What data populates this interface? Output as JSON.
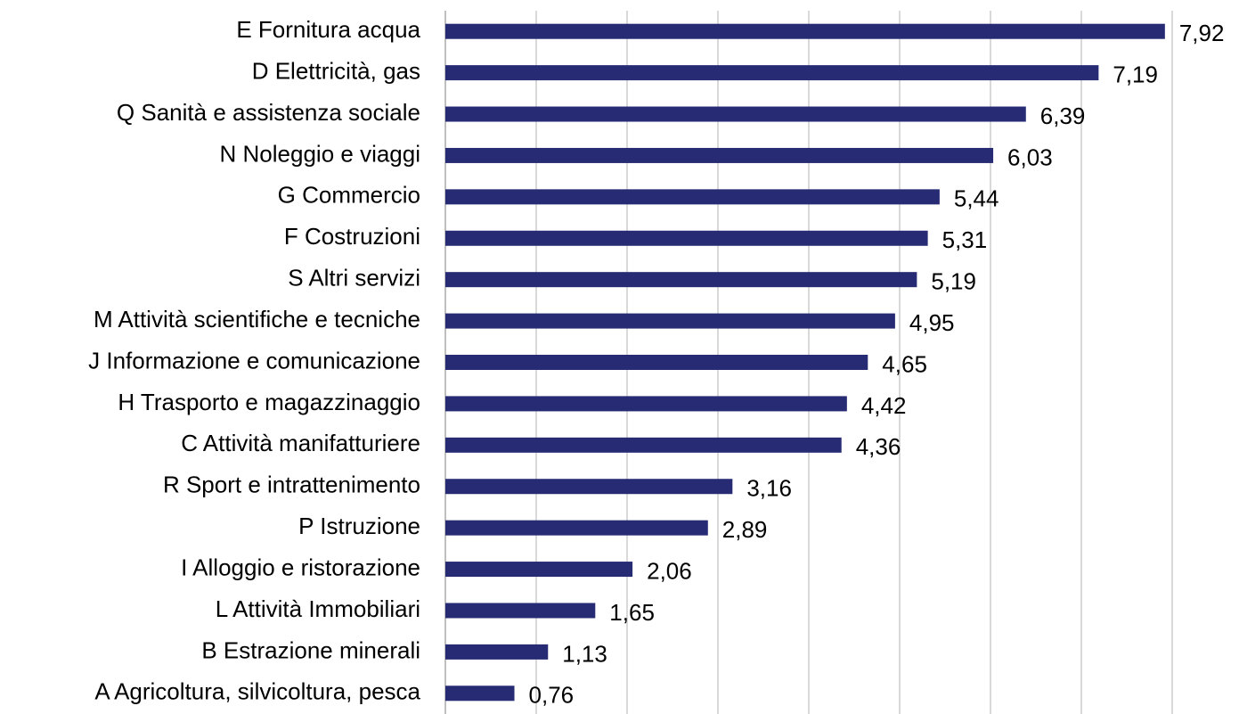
{
  "chart_data": {
    "type": "hbar",
    "categories": [
      "E Fornitura acqua",
      "D Elettricità, gas",
      "Q Sanità e assistenza sociale",
      "N Noleggio e viaggi",
      "G Commercio",
      "F Costruzioni",
      "S Altri servizi",
      "M Attività scientifiche e tecniche",
      "J Informazione e comunicazione",
      "H Trasporto e magazzinaggio",
      "C Attività manifatturiere",
      "R Sport e intrattenimento",
      "P Istruzione",
      "I Alloggio e ristorazione",
      "L Attività Immobiliari",
      "B Estrazione minerali",
      "A Agricoltura, silvicoltura, pesca"
    ],
    "values": [
      7.92,
      7.19,
      6.39,
      6.03,
      5.44,
      5.31,
      5.19,
      4.95,
      4.65,
      4.42,
      4.36,
      3.16,
      2.89,
      2.06,
      1.65,
      1.13,
      0.76
    ],
    "value_labels": [
      "7,92",
      "7,19",
      "6,39",
      "6,03",
      "5,44",
      "5,31",
      "5,19",
      "4,95",
      "4,65",
      "4,42",
      "4,36",
      "3,16",
      "2,89",
      "2,06",
      "1,65",
      "1,13",
      "0,76"
    ],
    "color": "#272b74",
    "xlim": [
      0,
      8
    ],
    "xticks": [
      0,
      1,
      2,
      3,
      4,
      5,
      6,
      7,
      8
    ],
    "grid": true
  }
}
